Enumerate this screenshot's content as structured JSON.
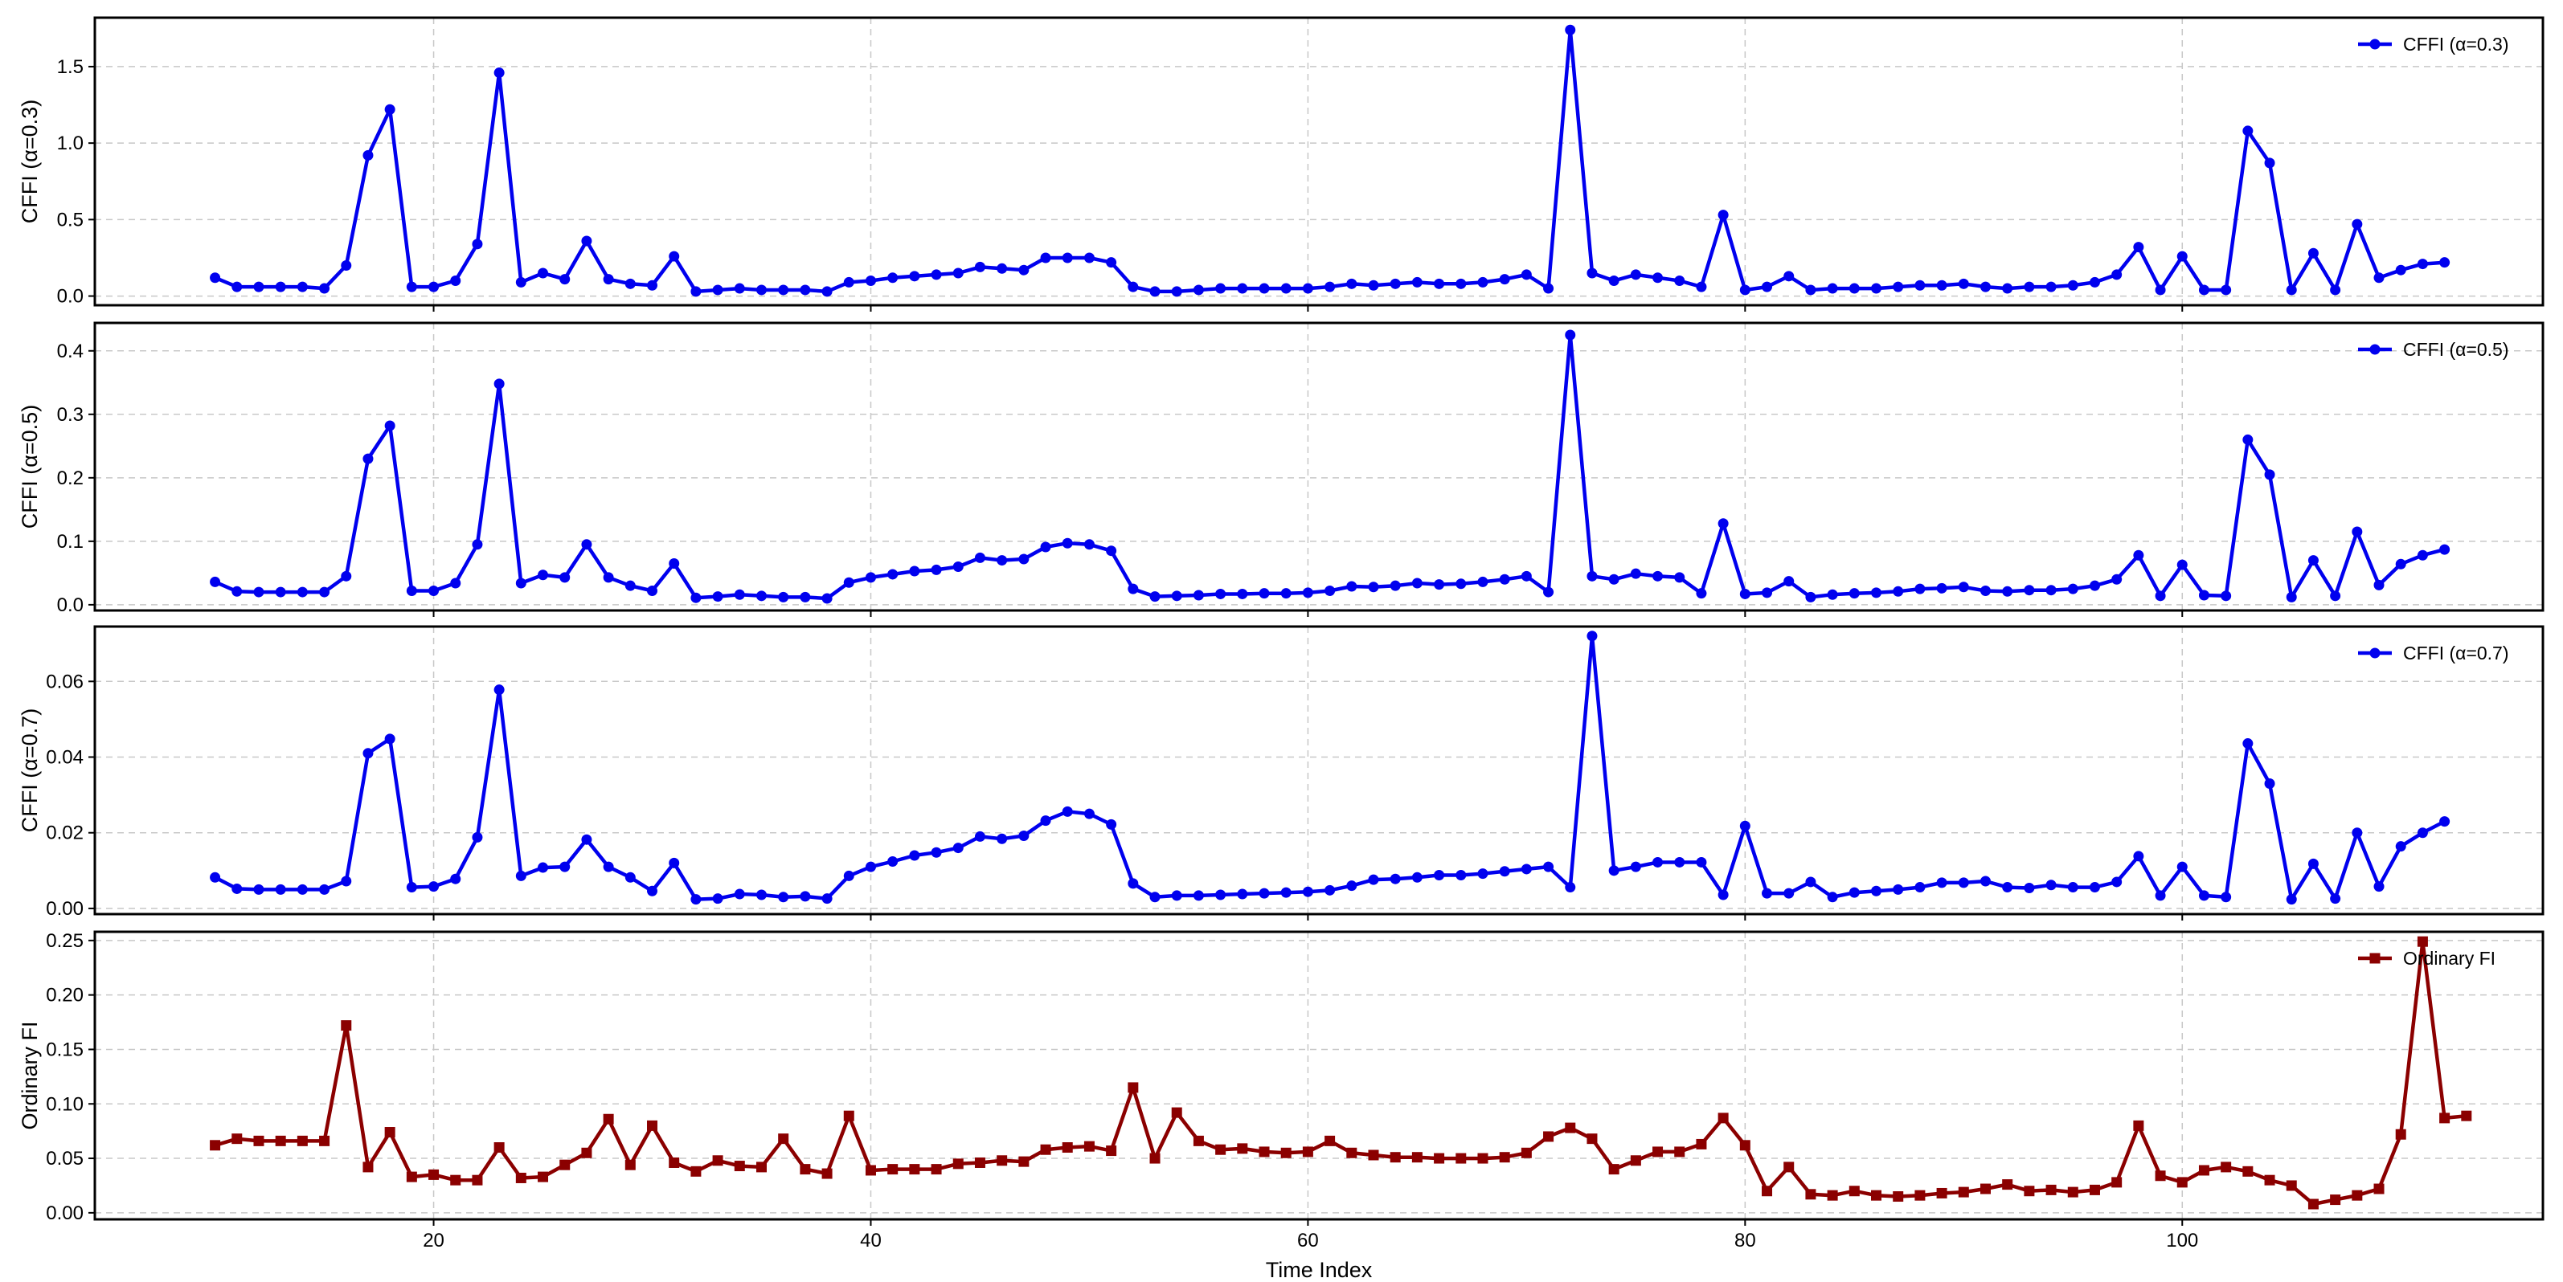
{
  "chart_data": [
    {
      "type": "line",
      "ylabel": "CFFI (α=0.3)",
      "xlim": [
        4.5,
        116.5
      ],
      "ylim": [
        -0.06,
        1.82
      ],
      "yticks": [
        0.0,
        0.5,
        1.0,
        1.5
      ],
      "ytick_labels": [
        "0.0",
        "0.5",
        "1.0",
        "1.5"
      ],
      "xticks": [
        20,
        40,
        60,
        80,
        100
      ],
      "grid": true,
      "legend": "top-right",
      "series": [
        {
          "name": "CFFI (α=0.3)",
          "color": "#0000ee",
          "marker": "circle",
          "x_start": 10,
          "values": [
            0.12,
            0.06,
            0.06,
            0.06,
            0.06,
            0.05,
            0.2,
            0.92,
            1.22,
            0.06,
            0.06,
            0.1,
            0.34,
            1.46,
            0.09,
            0.15,
            0.11,
            0.36,
            0.11,
            0.08,
            0.07,
            0.26,
            0.03,
            0.04,
            0.05,
            0.04,
            0.04,
            0.04,
            0.03,
            0.09,
            0.1,
            0.12,
            0.13,
            0.14,
            0.15,
            0.19,
            0.18,
            0.17,
            0.25,
            0.25,
            0.25,
            0.22,
            0.06,
            0.03,
            0.03,
            0.04,
            0.05,
            0.05,
            0.05,
            0.05,
            0.05,
            0.06,
            0.08,
            0.07,
            0.08,
            0.09,
            0.08,
            0.08,
            0.09,
            0.11,
            0.14,
            0.05,
            1.74,
            0.15,
            0.1,
            0.14,
            0.12,
            0.1,
            0.06,
            0.53,
            0.04,
            0.06,
            0.13,
            0.04,
            0.05,
            0.05,
            0.05,
            0.06,
            0.07,
            0.07,
            0.08,
            0.06,
            0.05,
            0.06,
            0.06,
            0.07,
            0.09,
            0.14,
            0.32,
            0.04,
            0.26,
            0.04,
            0.04,
            1.08,
            0.87,
            0.04,
            0.28,
            0.04,
            0.47,
            0.12,
            0.17,
            0.21,
            0.22
          ]
        }
      ]
    },
    {
      "type": "line",
      "ylabel": "CFFI (α=0.5)",
      "xlim": [
        4.5,
        116.5
      ],
      "ylim": [
        -0.009,
        0.444
      ],
      "yticks": [
        0.0,
        0.1,
        0.2,
        0.3,
        0.4
      ],
      "ytick_labels": [
        "0.0",
        "0.1",
        "0.2",
        "0.3",
        "0.4"
      ],
      "xticks": [
        20,
        40,
        60,
        80,
        100
      ],
      "grid": true,
      "legend": "top-right",
      "series": [
        {
          "name": "CFFI (α=0.5)",
          "color": "#0000ee",
          "marker": "circle",
          "x_start": 10,
          "values": [
            0.036,
            0.021,
            0.02,
            0.02,
            0.02,
            0.02,
            0.045,
            0.23,
            0.282,
            0.022,
            0.022,
            0.034,
            0.095,
            0.348,
            0.034,
            0.047,
            0.043,
            0.095,
            0.043,
            0.03,
            0.022,
            0.065,
            0.011,
            0.013,
            0.016,
            0.014,
            0.012,
            0.012,
            0.01,
            0.035,
            0.043,
            0.048,
            0.053,
            0.055,
            0.06,
            0.074,
            0.07,
            0.072,
            0.091,
            0.097,
            0.095,
            0.085,
            0.025,
            0.013,
            0.014,
            0.015,
            0.017,
            0.017,
            0.018,
            0.018,
            0.019,
            0.022,
            0.029,
            0.028,
            0.03,
            0.034,
            0.032,
            0.033,
            0.036,
            0.04,
            0.045,
            0.02,
            0.425,
            0.045,
            0.04,
            0.049,
            0.045,
            0.043,
            0.018,
            0.128,
            0.017,
            0.019,
            0.037,
            0.012,
            0.016,
            0.018,
            0.019,
            0.021,
            0.025,
            0.026,
            0.028,
            0.022,
            0.021,
            0.023,
            0.023,
            0.025,
            0.03,
            0.04,
            0.078,
            0.014,
            0.063,
            0.015,
            0.014,
            0.26,
            0.205,
            0.012,
            0.07,
            0.014,
            0.115,
            0.031,
            0.064,
            0.078,
            0.087
          ]
        }
      ]
    },
    {
      "type": "line",
      "ylabel": "CFFI (α=0.7)",
      "xlim": [
        4.5,
        116.5
      ],
      "ylim": [
        -0.0015,
        0.0745
      ],
      "yticks": [
        0.0,
        0.02,
        0.04,
        0.06
      ],
      "ytick_labels": [
        "0.00",
        "0.02",
        "0.04",
        "0.06"
      ],
      "xticks": [
        20,
        40,
        60,
        80,
        100
      ],
      "grid": true,
      "legend": "top-right",
      "series": [
        {
          "name": "CFFI (α=0.7)",
          "color": "#0000ee",
          "marker": "circle",
          "x_start": 10,
          "values": [
            0.0082,
            0.0052,
            0.005,
            0.005,
            0.005,
            0.005,
            0.0072,
            0.041,
            0.0448,
            0.0056,
            0.0058,
            0.0078,
            0.0188,
            0.0578,
            0.0086,
            0.0108,
            0.011,
            0.0182,
            0.011,
            0.0082,
            0.0046,
            0.012,
            0.0024,
            0.0026,
            0.0038,
            0.0036,
            0.003,
            0.0032,
            0.0026,
            0.0086,
            0.011,
            0.0124,
            0.014,
            0.0148,
            0.016,
            0.019,
            0.0184,
            0.0192,
            0.0232,
            0.0256,
            0.025,
            0.0222,
            0.0066,
            0.003,
            0.0034,
            0.0034,
            0.0036,
            0.0038,
            0.004,
            0.0042,
            0.0044,
            0.0048,
            0.006,
            0.0076,
            0.0078,
            0.0082,
            0.0088,
            0.0088,
            0.0092,
            0.0098,
            0.0104,
            0.011,
            0.0056,
            0.072,
            0.01,
            0.011,
            0.0122,
            0.0122,
            0.0122,
            0.0036,
            0.0218,
            0.004,
            0.004,
            0.007,
            0.003,
            0.0042,
            0.0046,
            0.005,
            0.0056,
            0.0068,
            0.0068,
            0.0072,
            0.0056,
            0.0054,
            0.0062,
            0.0056,
            0.0056,
            0.007,
            0.0138,
            0.0034,
            0.011,
            0.0034,
            0.003,
            0.0436,
            0.033,
            0.0024,
            0.0118,
            0.0026,
            0.02,
            0.0058,
            0.0164,
            0.02,
            0.023
          ]
        }
      ]
    },
    {
      "type": "line",
      "ylabel": "Ordinary FI",
      "xlabel": "Time Index",
      "xlim": [
        4.5,
        116.5
      ],
      "ylim": [
        -0.006,
        0.258
      ],
      "yticks": [
        0.0,
        0.05,
        0.1,
        0.15,
        0.2,
        0.25
      ],
      "ytick_labels": [
        "0.00",
        "0.05",
        "0.10",
        "0.15",
        "0.20",
        "0.25"
      ],
      "xticks": [
        20,
        40,
        60,
        80,
        100
      ],
      "xtick_labels": [
        "20",
        "40",
        "60",
        "80",
        "100"
      ],
      "grid": true,
      "legend": "top-right",
      "series": [
        {
          "name": "Ordinary FI",
          "color": "#8b0000",
          "marker": "square",
          "x_start": 10,
          "values": [
            0.062,
            0.068,
            0.066,
            0.066,
            0.066,
            0.066,
            0.172,
            0.042,
            0.074,
            0.033,
            0.035,
            0.03,
            0.03,
            0.06,
            0.032,
            0.033,
            0.044,
            0.055,
            0.086,
            0.044,
            0.08,
            0.046,
            0.038,
            0.048,
            0.043,
            0.042,
            0.068,
            0.04,
            0.036,
            0.089,
            0.039,
            0.04,
            0.04,
            0.04,
            0.045,
            0.046,
            0.048,
            0.047,
            0.058,
            0.06,
            0.061,
            0.057,
            0.115,
            0.05,
            0.092,
            0.066,
            0.058,
            0.059,
            0.056,
            0.055,
            0.056,
            0.066,
            0.055,
            0.053,
            0.051,
            0.051,
            0.05,
            0.05,
            0.05,
            0.051,
            0.055,
            0.07,
            0.078,
            0.068,
            0.04,
            0.048,
            0.056,
            0.056,
            0.063,
            0.087,
            0.062,
            0.02,
            0.042,
            0.017,
            0.016,
            0.02,
            0.016,
            0.015,
            0.016,
            0.018,
            0.019,
            0.022,
            0.026,
            0.02,
            0.021,
            0.019,
            0.021,
            0.028,
            0.08,
            0.034,
            0.028,
            0.039,
            0.042,
            0.038,
            0.03,
            0.025,
            0.008,
            0.012,
            0.016,
            0.022,
            0.072,
            0.249,
            0.087,
            0.089
          ]
        }
      ]
    }
  ]
}
